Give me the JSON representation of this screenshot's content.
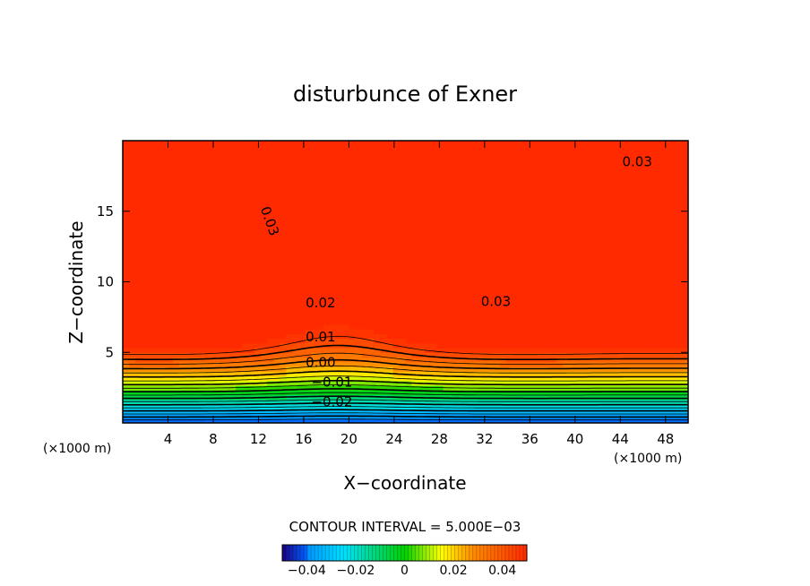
{
  "chart_data": {
    "type": "heatmap",
    "title": "disturbunce of Exner",
    "xlabel": "X−coordinate",
    "ylabel": "Z−coordinate",
    "x_unit_label_left": "(×1000 m)",
    "x_unit_label_right": "(×1000 m)",
    "xlim": [
      0,
      50
    ],
    "ylim": [
      0,
      20
    ],
    "x_ticks": [
      4,
      8,
      12,
      16,
      20,
      24,
      28,
      32,
      36,
      40,
      44,
      48
    ],
    "y_ticks": [
      5,
      10,
      15
    ],
    "contour_interval_text": "CONTOUR INTERVAL = 5.000E−03",
    "contour_interval": 0.005,
    "contour_labels": [
      {
        "text": "0.03",
        "x": 45.5,
        "z": 18.5
      },
      {
        "text": "0.03",
        "x": 13.0,
        "z": 14.3
      },
      {
        "text": "0.03",
        "x": 33.0,
        "z": 8.6
      },
      {
        "text": "0.02",
        "x": 17.5,
        "z": 8.5
      },
      {
        "text": "0.01",
        "x": 17.5,
        "z": 6.1
      },
      {
        "text": "0.00",
        "x": 17.5,
        "z": 4.3
      },
      {
        "text": "−0.01",
        "x": 18.5,
        "z": 2.9
      },
      {
        "text": "−0.02",
        "x": 18.5,
        "z": 1.5
      }
    ],
    "colorbar": {
      "range": [
        -0.05,
        0.05
      ],
      "tick_values": [
        -0.04,
        -0.02,
        0,
        0.02,
        0.04
      ],
      "tick_labels": [
        "−0.04",
        "−0.02",
        "0",
        "0.02",
        "0.04"
      ]
    },
    "colors": {
      "max": "#ff2a00",
      "high": "#ff8c00",
      "mid": "#ffff00",
      "zero": "#00d000",
      "low": "#00e0ff",
      "min": "#0060ff",
      "colorbar_min": "#1a0080"
    }
  }
}
